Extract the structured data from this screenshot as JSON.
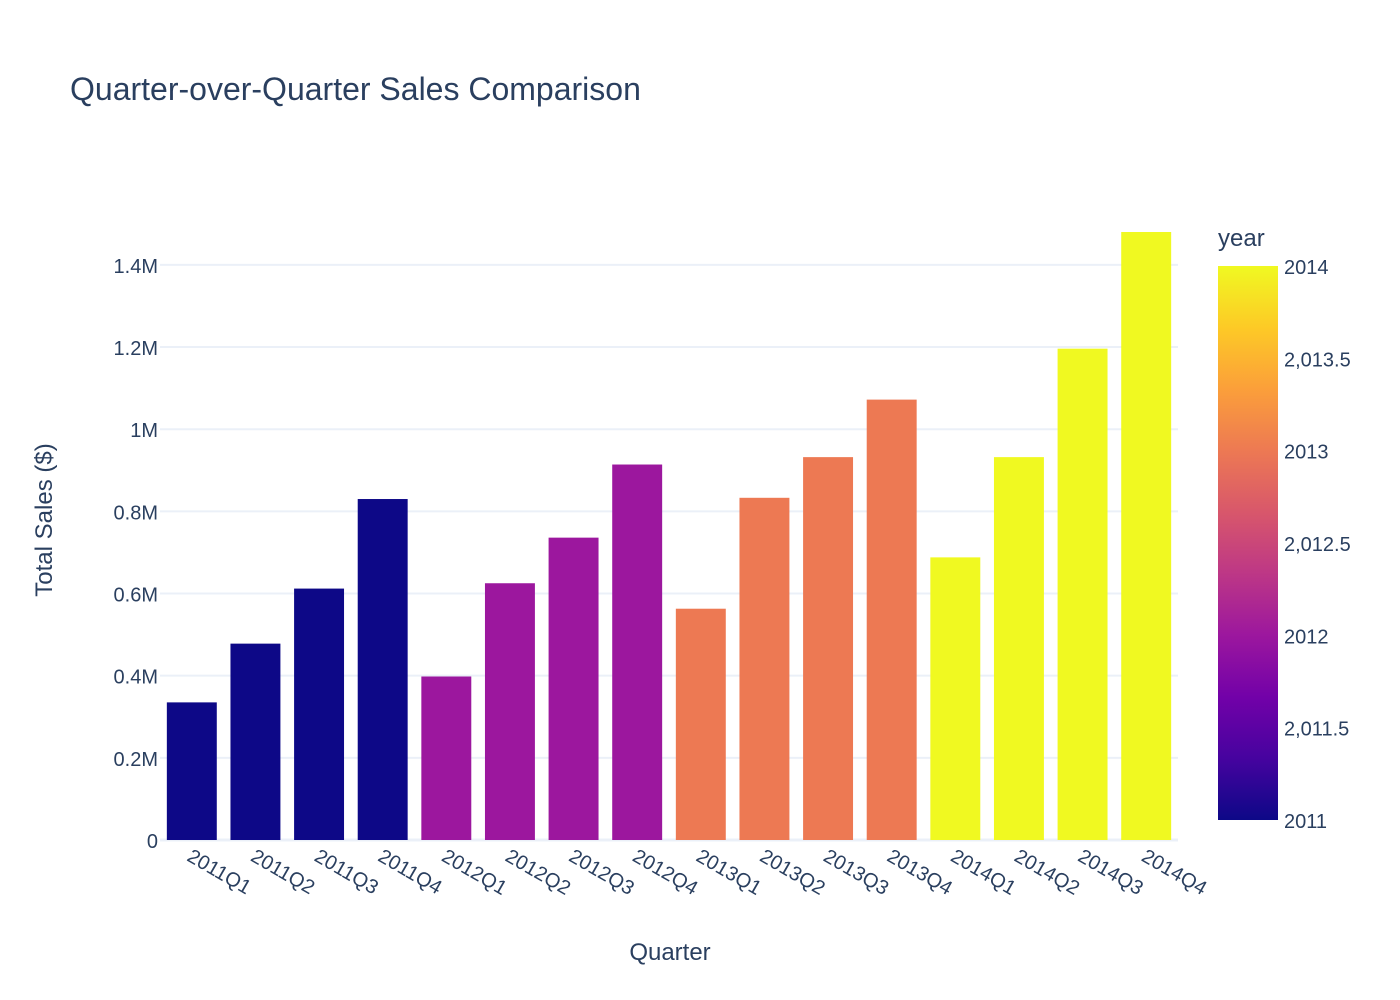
{
  "chart_data": {
    "type": "bar",
    "title": "Quarter-over-Quarter Sales Comparison",
    "xlabel": "Quarter",
    "ylabel": "Total Sales ($)",
    "ylim": [
      0,
      1480000
    ],
    "grid": "horizontal",
    "categories": [
      "2011Q1",
      "2011Q2",
      "2011Q3",
      "2011Q4",
      "2012Q1",
      "2012Q2",
      "2012Q3",
      "2012Q4",
      "2013Q1",
      "2013Q2",
      "2013Q3",
      "2013Q4",
      "2014Q1",
      "2014Q2",
      "2014Q3",
      "2014Q4"
    ],
    "values": [
      335000,
      478000,
      612000,
      830000,
      398000,
      625000,
      736000,
      914000,
      563000,
      833000,
      932000,
      1072000,
      688000,
      932000,
      1196000,
      1480000
    ],
    "years": [
      2011,
      2011,
      2011,
      2011,
      2012,
      2012,
      2012,
      2012,
      2013,
      2013,
      2013,
      2013,
      2014,
      2014,
      2014,
      2014
    ],
    "y_ticks": [
      {
        "value": 0,
        "label": "0"
      },
      {
        "value": 200000,
        "label": "0.2M"
      },
      {
        "value": 400000,
        "label": "0.4M"
      },
      {
        "value": 600000,
        "label": "0.6M"
      },
      {
        "value": 800000,
        "label": "0.8M"
      },
      {
        "value": 1000000,
        "label": "1M"
      },
      {
        "value": 1200000,
        "label": "1.2M"
      },
      {
        "value": 1400000,
        "label": "1.4M"
      }
    ],
    "colors": {
      "2011": "#0d0887",
      "2012": "#9c179e",
      "2013": "#ed7953",
      "2014": "#f0f921"
    },
    "colorbar": {
      "title": "year",
      "range": [
        2011,
        2014
      ],
      "ticks": [
        {
          "value": 2011,
          "label": "2011"
        },
        {
          "value": 2011.5,
          "label": "2,011.5"
        },
        {
          "value": 2012,
          "label": "2012"
        },
        {
          "value": 2012.5,
          "label": "2,012.5"
        },
        {
          "value": 2013,
          "label": "2013"
        },
        {
          "value": 2013.5,
          "label": "2,013.5"
        },
        {
          "value": 2014,
          "label": "2014"
        }
      ],
      "stops": [
        "#0d0887",
        "#46039f",
        "#7201a8",
        "#9c179e",
        "#bd3786",
        "#d8576b",
        "#ed7953",
        "#fb9f3a",
        "#fdca26",
        "#f0f921"
      ]
    }
  }
}
